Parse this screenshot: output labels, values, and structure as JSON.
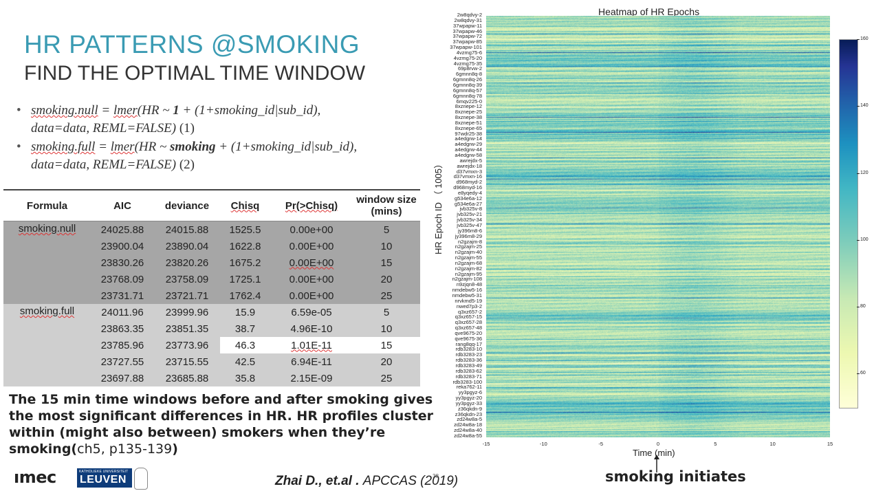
{
  "slide": {
    "title": "HR PATTERNS @SMOKING",
    "subtitle": "FIND THE OPTIMAL TIME WINDOW",
    "page_number": "38"
  },
  "models": {
    "null_lhs": "smoking.null",
    "null_fn": "lmer",
    "null_formula_a": "(HR ~",
    "null_term": "1",
    "null_formula_b": "+ (1+smoking_id|sub_id),",
    "null_data": "data=data, REML=FALSE)",
    "null_num": "(1)",
    "full_lhs": "smoking.full",
    "full_fn": "lmer",
    "full_formula_a": "(HR ~",
    "full_term": "smoking",
    "full_formula_b": "+ (1+smoking_id|sub_id),",
    "full_data": "data=data, REML=FALSE)",
    "full_num": "(2)"
  },
  "table": {
    "headers": [
      "Formula",
      "AIC",
      "deviance",
      "Chisq",
      "Pr(>Chisq)",
      "window size (mins)"
    ],
    "groups": [
      {
        "label": "smoking.null",
        "rows": [
          [
            "24025.88",
            "24015.88",
            "1525.5",
            "0.00e+00",
            "5"
          ],
          [
            "23900.04",
            "23890.04",
            "1622.8",
            "0.00E+00",
            "10"
          ],
          [
            "23830.26",
            "23820.26",
            "1675.2",
            "0.00E+00",
            "15"
          ],
          [
            "23768.09",
            "23758.09",
            "1725.1",
            "0.00E+00",
            "20"
          ],
          [
            "23731.71",
            "23721.71",
            "1762.4",
            "0.00E+00",
            "25"
          ]
        ]
      },
      {
        "label": "smoking.full",
        "rows": [
          [
            "24011.96",
            "23999.96",
            "15.9",
            "6.59e-05",
            "5"
          ],
          [
            "23863.35",
            "23851.35",
            "38.7",
            "4.96E-10",
            "10"
          ],
          [
            "23785.96",
            "23773.96",
            "46.3",
            "1.01E-11",
            "15"
          ],
          [
            "23727.55",
            "23715.55",
            "42.5",
            "6.94E-11",
            "20"
          ],
          [
            "23697.88",
            "23685.88",
            "35.8",
            "2.15E-09",
            "25"
          ]
        ]
      }
    ]
  },
  "conclusion": {
    "bold": "The 15 min time windows before and after smoking gives the most significant differences in HR. HR profiles cluster within (might also between) smokers when they’re smoking(",
    "ref": "ch5, p135-139",
    "end": ")"
  },
  "footer": {
    "logo_imec": "ımec",
    "logo_ku_small": "KATHOLIEKE UNIVERSITEIT",
    "logo_ku": "LEUVEN",
    "citation_authors": "Zhai D., et.al .",
    "citation_venue": "APCCAS (2019)"
  },
  "heatmap": {
    "title": "Heatmap of HR Epochs",
    "ylabel": "HR Epoch ID （ 1005）",
    "xlabel": "Time (min)",
    "annotation": "smoking initiates",
    "colors": {
      "low": "#ffffd9",
      "mid": "#41b6c4",
      "high": "#081d58"
    }
  },
  "chart_data": {
    "type": "heatmap",
    "title": "Heatmap of HR Epochs",
    "xlabel": "Time (min)",
    "ylabel": "HR Epoch ID （ 1005）",
    "x_ticks": [
      "-15",
      "-10",
      "-5",
      "0",
      "5",
      "10",
      "15"
    ],
    "xlim": [
      -15,
      15
    ],
    "colorbar_ticks": [
      "160",
      "140",
      "120",
      "100",
      "80",
      "60"
    ],
    "color_range": [
      50,
      160
    ],
    "row_ids": [
      "2w8qdvy-2",
      "2w8qdvy-31",
      "37wpapw-11",
      "37wpapw-46",
      "37wpapw-72",
      "37wpapw-85",
      "37wpapw-101",
      "4vzmg75-6",
      "4vzmg75-20",
      "4vzmg75-35",
      "69p8rvw-2",
      "6gmnn8q-8",
      "6gmnn8q-26",
      "6gmnn8q-39",
      "6gmnn8q-57",
      "6gmnn8q-78",
      "6mqv225-0",
      "8xznepe-12",
      "8xznepe-25",
      "8xznepe-38",
      "8xznepe-51",
      "8xznepe-65",
      "97wdr25-38",
      "a4edgrw-14",
      "a4edgrw-29",
      "a4edgrw-44",
      "a4edgrw-58",
      "awrejdx-5",
      "awrejdx-18",
      "d37vmxn-3",
      "d37vmxn-16",
      "d968myd-2",
      "d968myd-16",
      "e8yqedy-4",
      "g534e6a-12",
      "g534e6a-27",
      "jvb325v-8",
      "jvb325v-21",
      "jvb325v-34",
      "jvb325v-47",
      "jy396m8-6",
      "jy396m8-29",
      "n2gzajm-8",
      "n2gzajm-25",
      "n2gzajm-40",
      "n2gzajm-55",
      "n2gzajm-68",
      "n2gzajm-82",
      "n2gzajm-95",
      "n2gzajm-108",
      "n9zjqn8-48",
      "nmdebw5-16",
      "nmdebw5-31",
      "nrvkmd5-19",
      "nwed7p3-2",
      "q3xz657-2",
      "q3xz657-15",
      "q3xz657-28",
      "q3xz657-48",
      "qve9675-20",
      "qve9675-36",
      "rang8qq-17",
      "rdb3283-10",
      "rdb3283-23",
      "rdb3283-36",
      "rdb3283-49",
      "rdb3283-62",
      "rdb3283-71",
      "rdb3283-100",
      "reka762-11",
      "yy3pgyz-6",
      "yy3pgyz-20",
      "yy3pgyz-33",
      "z36qkdn-9",
      "z36qkdn-23",
      "zd24w8a-5",
      "zd24w8a-18",
      "zd24w8a-40",
      "zd24w8a-55"
    ]
  }
}
